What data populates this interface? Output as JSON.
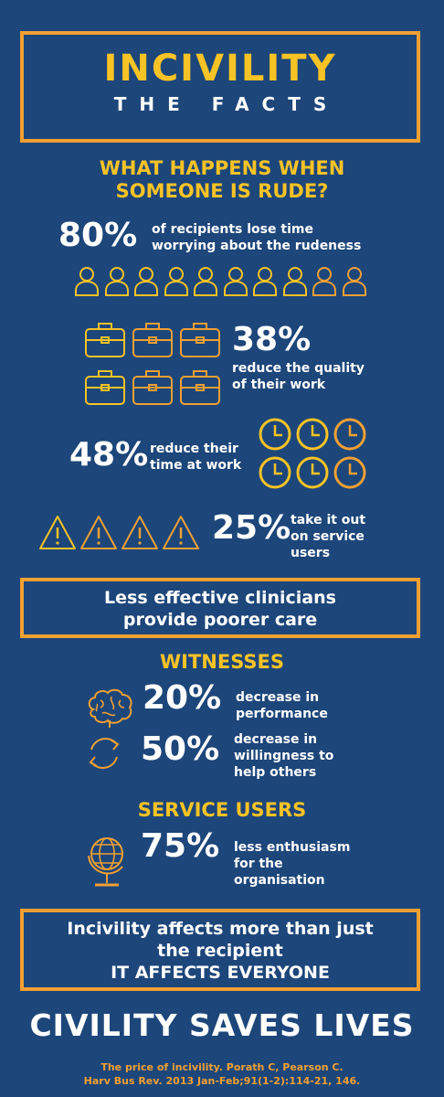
{
  "colors": {
    "background": "#1d467a",
    "yellow": "#f7c325",
    "orange": "#f0a033",
    "text": "#ffffff"
  },
  "title": {
    "main": "INCIVILITY",
    "sub": "THE FACTS"
  },
  "section1": {
    "heading_line1": "WHAT HAPPENS WHEN",
    "heading_line2": "SOMEONE IS RUDE?"
  },
  "stats": {
    "s80": {
      "value": "80%",
      "line1": "of recipients lose time",
      "line2": "worrying about the rudeness"
    },
    "s38": {
      "value": "38%",
      "line1": "reduce the quality",
      "line2": "of their work"
    },
    "s48": {
      "value": "48%",
      "line1": "reduce their",
      "line2": "time at work"
    },
    "s25": {
      "value": "25%",
      "line1": "take it out",
      "line2": "on service",
      "line3": "users"
    }
  },
  "icons": {
    "people": "person-icon",
    "briefcase": "briefcase-icon",
    "clock": "clock-icon",
    "warning": "warning-triangle-icon",
    "brain": "brain-icon",
    "cycle": "cycle-arrows-icon",
    "globe": "globe-icon"
  },
  "message1": {
    "line1": "Less effective clinicians",
    "line2": "provide poorer care"
  },
  "witnesses": {
    "heading": "WITNESSES",
    "s20": {
      "value": "20%",
      "line1": "decrease in",
      "line2": "performance"
    },
    "s50": {
      "value": "50%",
      "line1": "decrease in",
      "line2": "willingness to",
      "line3": "help others"
    }
  },
  "service_users": {
    "heading": "SERVICE USERS",
    "s75": {
      "value": "75%",
      "line1": "less enthusiasm",
      "line2": "for the",
      "line3": "organisation"
    }
  },
  "message2": {
    "line1": "Incivility affects more than just",
    "line2": "the recipient",
    "line3": "IT AFFECTS EVERYONE"
  },
  "footer": {
    "slogan": "CIVILITY SAVES LIVES",
    "ref_line1": "The price of incivility. Porath C, Pearson C.",
    "ref_line2": "Harv Bus Rev. 2013 Jan-Feb;91(1-2):114-21, 146."
  }
}
